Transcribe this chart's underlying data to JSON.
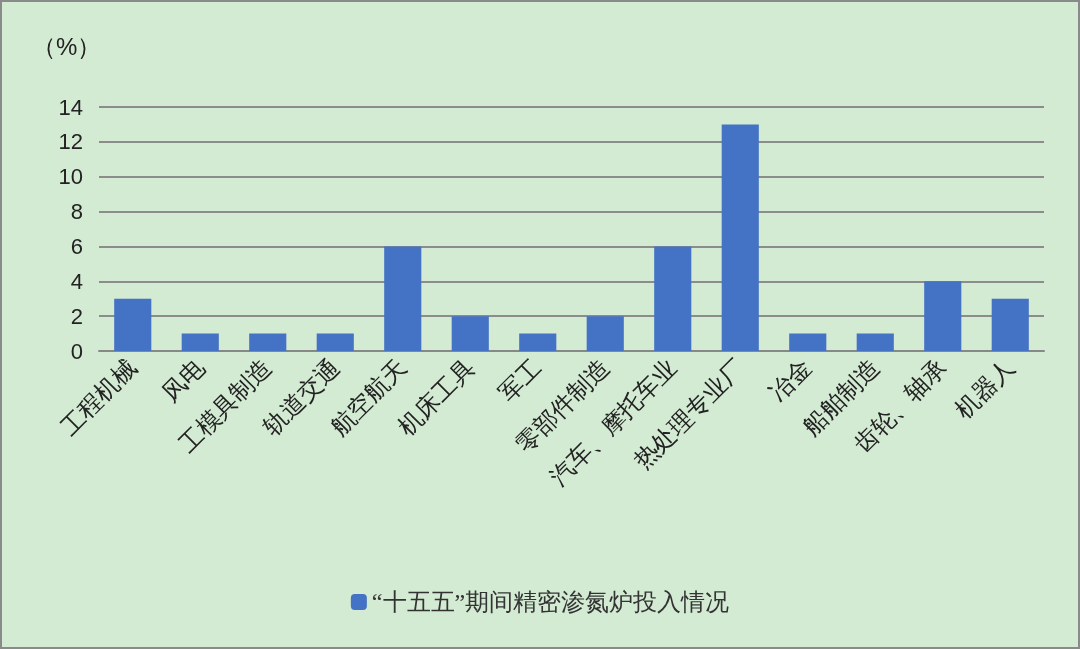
{
  "chart_data": {
    "type": "bar",
    "ylabel": "（%）",
    "categories": [
      "工程机械",
      "风电",
      "工模具制造",
      "轨道交通",
      "航空航天",
      "机床工具",
      "军工",
      "零部件制造",
      "汽车、摩托车业",
      "热处理专业厂",
      "冶金",
      "船舶制造",
      "齿轮、轴承",
      "机器人"
    ],
    "series": [
      {
        "name": "“十五五”期间精密渗氮炉投入情况",
        "color": "#4472c4",
        "values": [
          3,
          1,
          1,
          1,
          6,
          2,
          1,
          2,
          6,
          13,
          1,
          1,
          4,
          3
        ]
      }
    ],
    "ylim": [
      0,
      14
    ],
    "yticks": [
      0,
      2,
      4,
      6,
      8,
      10,
      12,
      14
    ],
    "grid": "y",
    "legend": "bottom"
  }
}
